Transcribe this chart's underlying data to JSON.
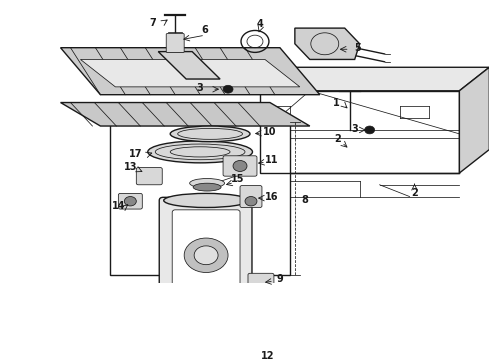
{
  "bg_color": "#ffffff",
  "line_color": "#1a1a1a",
  "gray_dark": "#555555",
  "gray_mid": "#888888",
  "gray_light": "#bbbbbb",
  "gray_fill": "#d8d8d8",
  "fig_width": 4.9,
  "fig_height": 3.6,
  "dpi": 100,
  "fs_label": 7.0,
  "lw_main": 1.0,
  "lw_thin": 0.55,
  "lw_thick": 1.6
}
